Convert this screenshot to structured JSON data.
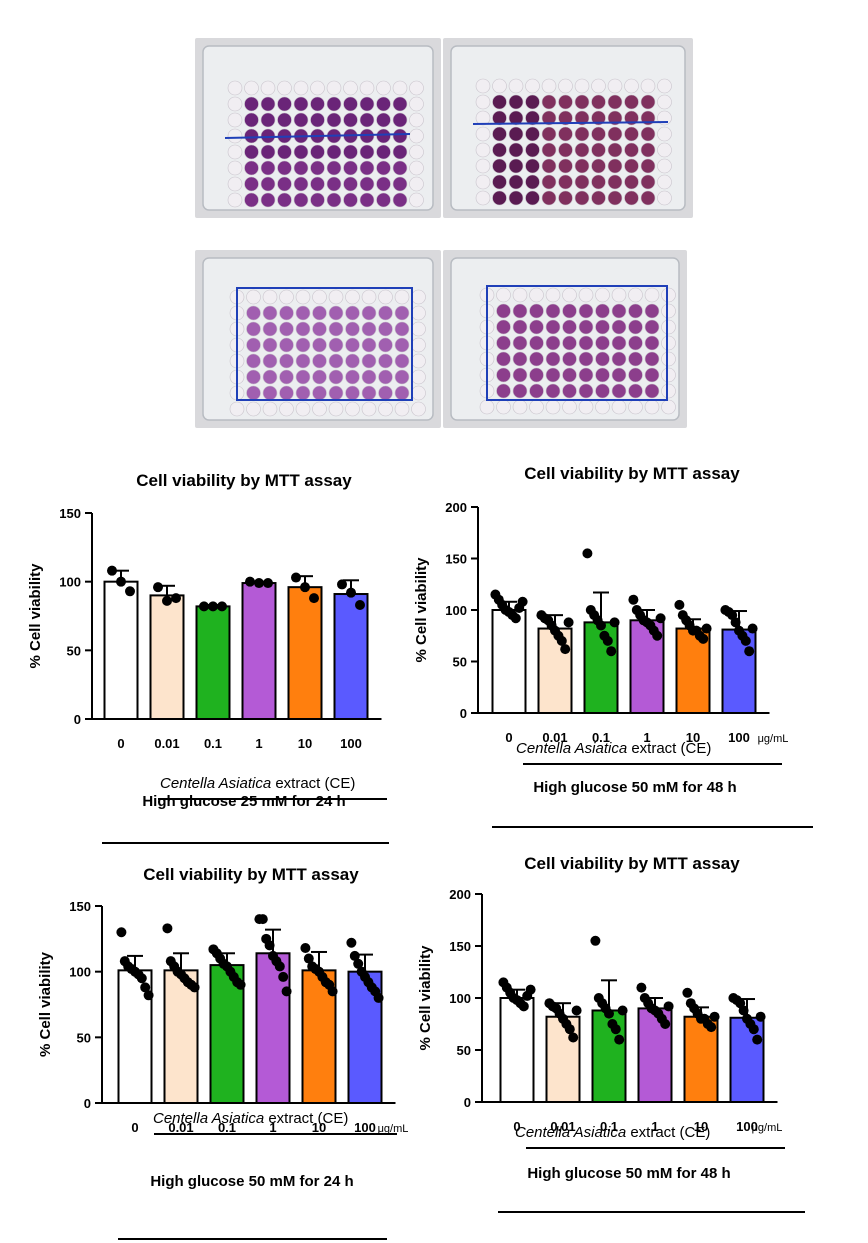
{
  "colors": {
    "bar_0": "#ffffff",
    "bar_0_01": "#fde4cc",
    "bar_0_1": "#1fb21f",
    "bar_1": "#b45ad6",
    "bar_10": "#ff7f0e",
    "bar_100": "#5a5aff",
    "plate_purple_dark": "#5c1f63",
    "plate_purple_light": "#b98ab9",
    "plate_background": "#d9d9dc",
    "marker_blue": "#1f3fb8"
  },
  "chart_data": [
    {
      "type": "bar",
      "title": "Cell viability by MTT assay",
      "ylabel": "% Cell viability",
      "xlabel": "",
      "categories": [
        "0",
        "0.01",
        "0.1",
        "1",
        "10",
        "100"
      ],
      "unit": "",
      "extract_label": {
        "italic": "Centella Asiatica",
        "rest": " extract (CE)"
      },
      "condition": "High glucose 25 mM for 24 h",
      "ylim": [
        0,
        150
      ],
      "yticks": [
        0,
        50,
        100,
        150
      ],
      "values": [
        100,
        90,
        82,
        99,
        96,
        91
      ],
      "errors": [
        8,
        7,
        1,
        1,
        8,
        10
      ],
      "points": [
        [
          108,
          100,
          93
        ],
        [
          96,
          86,
          88
        ],
        [
          82,
          82,
          82
        ],
        [
          100,
          99,
          99
        ],
        [
          103,
          96,
          88
        ],
        [
          98,
          92,
          83
        ]
      ]
    },
    {
      "type": "bar",
      "title": "Cell viability by MTT assay",
      "ylabel": "% Cell viability",
      "xlabel": "",
      "categories": [
        "0",
        "0.01",
        "0.1",
        "1",
        "10",
        "100"
      ],
      "unit": "μg/mL",
      "extract_label": {
        "italic": "Centella Asiatica",
        "rest": " extract (CE)"
      },
      "condition": "High glucose 50 mM for 48 h",
      "ylim": [
        0,
        200
      ],
      "yticks": [
        0,
        50,
        100,
        150,
        200
      ],
      "values": [
        100,
        82,
        88,
        90,
        82,
        81
      ],
      "errors": [
        8,
        13,
        29,
        10,
        9,
        18
      ],
      "points": [
        [
          115,
          110,
          105,
          100,
          98,
          95,
          92,
          102,
          108
        ],
        [
          95,
          92,
          90,
          85,
          80,
          75,
          70,
          62,
          88
        ],
        [
          155,
          100,
          95,
          90,
          85,
          75,
          70,
          60,
          88
        ],
        [
          110,
          100,
          95,
          90,
          88,
          85,
          80,
          75,
          92
        ],
        [
          105,
          95,
          90,
          85,
          80,
          80,
          75,
          72,
          82
        ],
        [
          100,
          98,
          95,
          88,
          80,
          75,
          70,
          60,
          82
        ]
      ]
    },
    {
      "type": "bar",
      "title": "Cell viability by MTT assay",
      "ylabel": "% Cell viability",
      "xlabel": "",
      "categories": [
        "0",
        "0.01",
        "0.1",
        "1",
        "10",
        "100"
      ],
      "unit": "μg/mL",
      "extract_label": {
        "italic": "Centella Asiatica",
        "rest": " extract (CE)"
      },
      "condition": "High glucose 50 mM for 24 h",
      "ylim": [
        0,
        150
      ],
      "yticks": [
        0,
        50,
        100,
        150
      ],
      "values": [
        101,
        101,
        105,
        114,
        101,
        100
      ],
      "errors": [
        11,
        13,
        9,
        18,
        14,
        13
      ],
      "points": [
        [
          130,
          108,
          104,
          102,
          100,
          98,
          95,
          88,
          82
        ],
        [
          133,
          108,
          104,
          100,
          98,
          95,
          92,
          90,
          88
        ],
        [
          117,
          114,
          110,
          106,
          104,
          100,
          96,
          92,
          90
        ],
        [
          140,
          140,
          125,
          120,
          112,
          108,
          104,
          96,
          85
        ],
        [
          118,
          110,
          104,
          102,
          100,
          96,
          92,
          90,
          85
        ],
        [
          122,
          112,
          106,
          100,
          96,
          92,
          88,
          85,
          80
        ]
      ]
    },
    {
      "type": "bar",
      "title": "Cell viability by MTT assay",
      "ylabel": "% Cell viability",
      "xlabel": "",
      "categories": [
        "0",
        "0.01",
        "0.1",
        "1",
        "10",
        "100"
      ],
      "unit": "μg/mL",
      "extract_label": {
        "italic": "Centella Asiatica",
        "rest": " extract (CE)"
      },
      "condition": "High glucose 50 mM for 48 h",
      "ylim": [
        0,
        200
      ],
      "yticks": [
        0,
        50,
        100,
        150,
        200
      ],
      "values": [
        100,
        82,
        88,
        90,
        82,
        81
      ],
      "errors": [
        8,
        13,
        29,
        10,
        9,
        18
      ],
      "points": [
        [
          115,
          110,
          105,
          100,
          98,
          95,
          92,
          102,
          108
        ],
        [
          95,
          92,
          90,
          85,
          80,
          75,
          70,
          62,
          88
        ],
        [
          155,
          100,
          95,
          90,
          85,
          75,
          70,
          60,
          88
        ],
        [
          110,
          100,
          95,
          90,
          88,
          85,
          80,
          75,
          92
        ],
        [
          105,
          95,
          90,
          85,
          80,
          80,
          75,
          72,
          82
        ],
        [
          100,
          98,
          95,
          88,
          80,
          75,
          70,
          60,
          82
        ]
      ]
    }
  ]
}
